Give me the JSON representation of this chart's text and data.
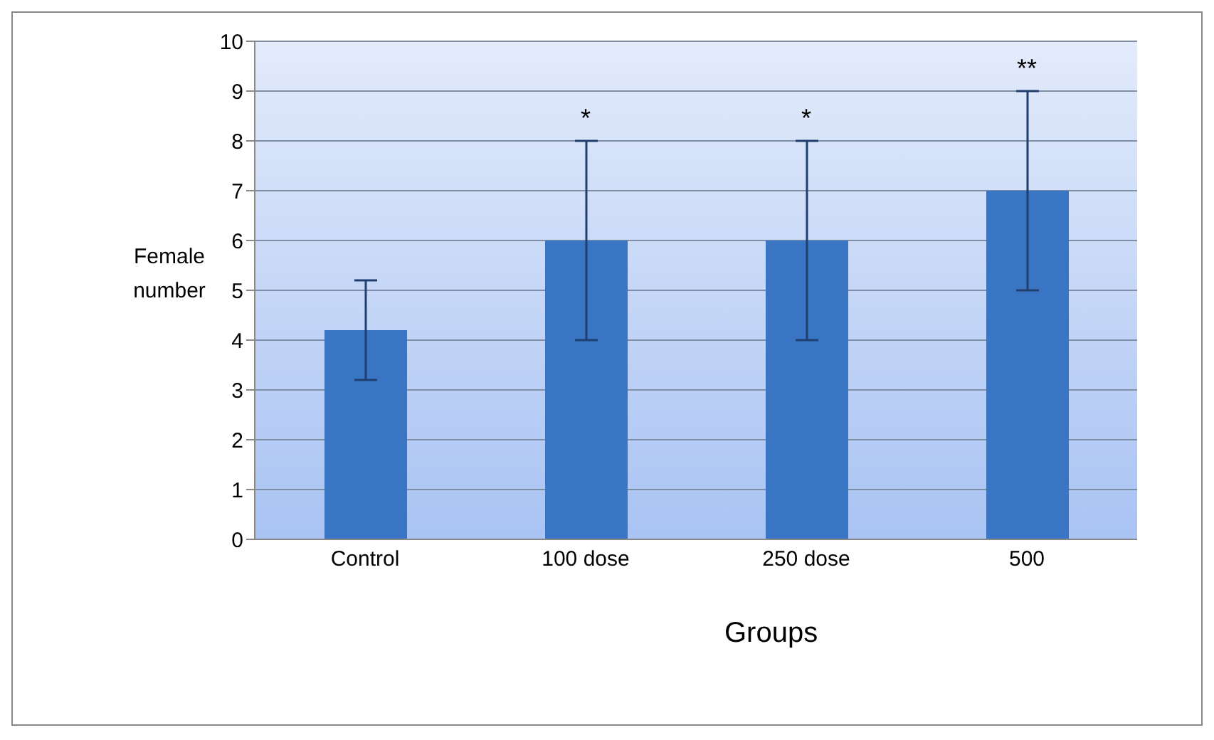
{
  "chart_data": {
    "type": "bar",
    "xlabel": "Groups",
    "ylabel": "Female number",
    "categories": [
      "Control",
      "100 dose",
      "250 dose",
      "500"
    ],
    "values": [
      4.2,
      6,
      6,
      7
    ],
    "errors": [
      [
        3.2,
        5.2
      ],
      [
        4,
        8
      ],
      [
        4,
        8
      ],
      [
        5,
        9
      ]
    ],
    "color": "#3a75c4",
    "ylim": [
      0,
      10
    ],
    "yticks": [
      0,
      1,
      2,
      3,
      4,
      5,
      6,
      7,
      8,
      9,
      10
    ],
    "grid": "y",
    "legend": false,
    "annotations": [
      "*",
      "*",
      "**"
    ]
  }
}
